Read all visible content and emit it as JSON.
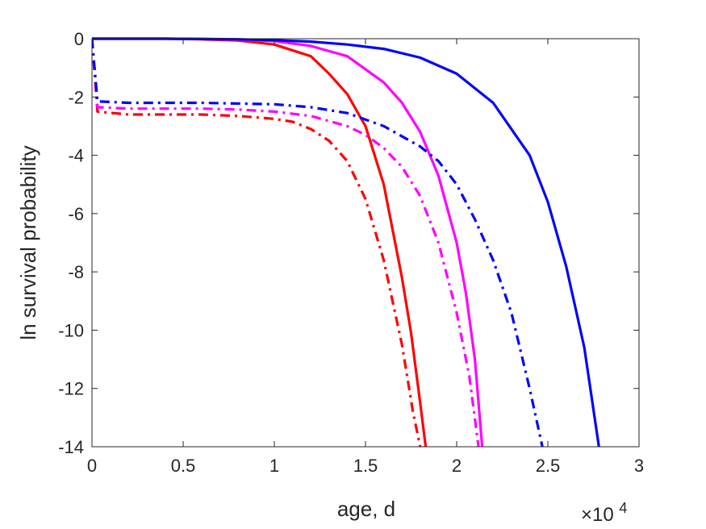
{
  "chart_data": {
    "type": "line",
    "title": "",
    "xlabel": "age, d",
    "ylabel": "ln survival probability",
    "x_multiplier": {
      "base": "×10",
      "exponent": "4"
    },
    "xlim": [
      0,
      30000
    ],
    "ylim": [
      -14,
      0
    ],
    "xticks": [
      0,
      5000,
      10000,
      15000,
      20000,
      25000,
      30000
    ],
    "xtick_labels": [
      "0",
      "0.5",
      "1",
      "1.5",
      "2",
      "2.5",
      "3"
    ],
    "yticks": [
      0,
      -2,
      -4,
      -6,
      -8,
      -10,
      -12,
      -14
    ],
    "ytick_labels": [
      "0",
      "-2",
      "-4",
      "-6",
      "-8",
      "-10",
      "-12",
      "-14"
    ],
    "grid": false,
    "legend": "none",
    "series": [
      {
        "color": "#ff0000",
        "style": "solid",
        "x": [
          0,
          2000,
          4000,
          6000,
          8000,
          10000,
          12000,
          13000,
          14000,
          15000,
          16000,
          17000,
          17500,
          18000,
          18300
        ],
        "y": [
          0,
          0,
          0,
          -0.02,
          -0.06,
          -0.2,
          -0.6,
          -1.2,
          -1.9,
          -3.0,
          -5.0,
          -8.2,
          -10.1,
          -12.5,
          -14
        ]
      },
      {
        "color": "#ff00ff",
        "style": "solid",
        "x": [
          0,
          2000,
          4000,
          6000,
          8000,
          10000,
          12000,
          14000,
          16000,
          17000,
          18000,
          19000,
          20000,
          20500,
          21000,
          21400
        ],
        "y": [
          0,
          0,
          0,
          -0.01,
          -0.03,
          -0.08,
          -0.25,
          -0.6,
          -1.5,
          -2.2,
          -3.2,
          -4.7,
          -7.0,
          -8.7,
          -11.0,
          -14
        ]
      },
      {
        "color": "#0000ff",
        "style": "solid",
        "x": [
          0,
          4000,
          8000,
          10000,
          12000,
          14000,
          16000,
          18000,
          20000,
          22000,
          24000,
          25000,
          26000,
          27000,
          27800
        ],
        "y": [
          0,
          0,
          -0.02,
          -0.05,
          -0.1,
          -0.2,
          -0.35,
          -0.65,
          -1.2,
          -2.2,
          -4.0,
          -5.6,
          -7.8,
          -10.6,
          -14
        ]
      },
      {
        "color": "#ff0000",
        "style": "dashdot",
        "x": [
          0,
          300,
          2000,
          4000,
          6000,
          8000,
          10000,
          11000,
          12000,
          13000,
          14000,
          15000,
          16000,
          17000,
          17600,
          18000
        ],
        "y": [
          0,
          -2.5,
          -2.6,
          -2.6,
          -2.6,
          -2.65,
          -2.75,
          -2.85,
          -3.1,
          -3.5,
          -4.2,
          -5.5,
          -7.6,
          -10.5,
          -12.8,
          -14
        ]
      },
      {
        "color": "#ff00ff",
        "style": "dashdot",
        "x": [
          0,
          300,
          2000,
          4000,
          6000,
          8000,
          10000,
          12000,
          14000,
          15000,
          16000,
          17000,
          18000,
          19000,
          20000,
          20700,
          21200
        ],
        "y": [
          0,
          -2.35,
          -2.4,
          -2.4,
          -2.4,
          -2.43,
          -2.5,
          -2.65,
          -3.0,
          -3.3,
          -3.75,
          -4.4,
          -5.4,
          -7.0,
          -9.4,
          -11.6,
          -14
        ]
      },
      {
        "color": "#0000ff",
        "style": "dashdot",
        "x": [
          0,
          300,
          2000,
          6000,
          10000,
          12000,
          14000,
          16000,
          18000,
          19000,
          20000,
          21000,
          22000,
          23000,
          24000,
          24700
        ],
        "y": [
          0,
          -2.15,
          -2.2,
          -2.2,
          -2.25,
          -2.35,
          -2.55,
          -3.0,
          -3.7,
          -4.2,
          -5.0,
          -6.2,
          -7.6,
          -9.4,
          -12.0,
          -14
        ]
      }
    ]
  }
}
